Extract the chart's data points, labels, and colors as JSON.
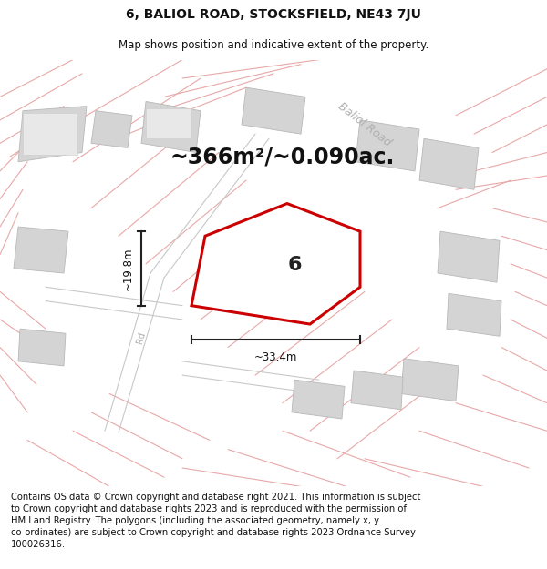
{
  "title": "6, BALIOL ROAD, STOCKSFIELD, NE43 7JU",
  "subtitle": "Map shows position and indicative extent of the property.",
  "footer": "Contains OS data © Crown copyright and database right 2021. This information is subject\nto Crown copyright and database rights 2023 and is reproduced with the permission of\nHM Land Registry. The polygons (including the associated geometry, namely x, y\nco-ordinates) are subject to Crown copyright and database rights 2023 Ordnance Survey\n100026316.",
  "bg_color": "#f2f2f2",
  "plot_edge_color": "#cc0000",
  "plot_fill_color": "#ffffff",
  "building_fill": "#d4d4d4",
  "building_edge": "#b8b8b8",
  "road_line_color": "#e8a8a8",
  "road_line_color2": "#c8c8c8",
  "dim_color": "#222222",
  "area_text": "~366m²/~0.090ac.",
  "plot_label": "6",
  "dim_width": "~33.4m",
  "dim_height": "~19.8m",
  "road_label_color": "#b0b0b0",
  "title_fontsize": 10,
  "subtitle_fontsize": 8.5,
  "footer_fontsize": 7.2,
  "area_fontsize": 17,
  "label_fontsize": 16,
  "dim_fontsize": 8.5,
  "road_label_fontsize": 9
}
